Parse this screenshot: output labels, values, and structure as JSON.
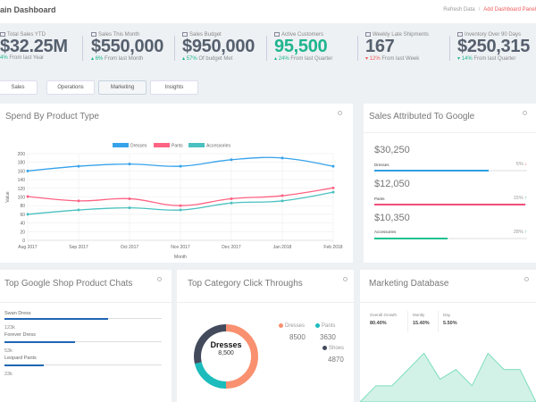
{
  "header": {
    "title": "ain Dashboard",
    "refresh_label": "Refresh Data",
    "separator": "/",
    "add_panel_label": "Add Dashboard Panel"
  },
  "stats": [
    {
      "icon": "money-icon",
      "label": "Total Sales YTD",
      "value": "$32.25M",
      "change": "4%",
      "change_dir": "up",
      "change_text": "From last Year"
    },
    {
      "icon": "money-icon",
      "label": "Sales This Month",
      "value": "$550,000",
      "change": "6%",
      "change_dir": "up",
      "change_text": "From last Month"
    },
    {
      "icon": "money-icon",
      "label": "Sales Budget",
      "value": "$950,000",
      "change": "57%",
      "change_dir": "up",
      "change_text": "Of budget Met"
    },
    {
      "icon": "users-icon",
      "label": "Active Customers",
      "value": "95,500",
      "change": "24%",
      "change_dir": "up",
      "change_text": "From last Quarter"
    },
    {
      "icon": "truck-icon",
      "label": "Weekly Late Shipments",
      "value": "167",
      "change": "12%",
      "change_dir": "down",
      "change_text": "From last Week"
    },
    {
      "icon": "inventory-icon",
      "label": "Inventory Over 90 Days",
      "value": "$250,315",
      "change": "14%",
      "change_dir": "up",
      "change_text": "From last Quarter"
    }
  ],
  "tabs": [
    {
      "label": "Sales",
      "active": false
    },
    {
      "label": "Operations",
      "active": false
    },
    {
      "label": "Marketing",
      "active": true
    },
    {
      "label": "Insights",
      "active": false
    }
  ],
  "spend_card": {
    "title": "Spend By Product Type"
  },
  "chart_data": {
    "type": "line",
    "title": "Spend By Product Type",
    "xlabel": "Month",
    "ylabel": "Value",
    "ylim": [
      0,
      200
    ],
    "yticks": [
      0,
      20,
      40,
      60,
      80,
      100,
      120,
      140,
      160,
      180,
      200
    ],
    "grid": true,
    "legend": "top-center",
    "categories": [
      "Aug 2017",
      "Sep 2017",
      "Oct 2017",
      "Nov 2017",
      "Dec 2017",
      "Jan 2018",
      "Feb 2018"
    ],
    "series": [
      {
        "name": "Dresses",
        "color": "#36a2eb",
        "values": [
          160,
          171,
          176,
          171,
          186,
          190,
          171
        ]
      },
      {
        "name": "Pants",
        "color": "#ff6384",
        "values": [
          101,
          91,
          96,
          80,
          96,
          103,
          121
        ]
      },
      {
        "name": "Accessories",
        "color": "#4bc0c0",
        "values": [
          60,
          70,
          75,
          70,
          86,
          91,
          111
        ]
      }
    ]
  },
  "google_card": {
    "title": "Sales Attributed To Google",
    "items": [
      {
        "amount": "$30,250",
        "name": "Dresses",
        "pct": "5%",
        "dir": "down",
        "fill": 0.75,
        "color": "#2e9fe6"
      },
      {
        "amount": "$12,050",
        "name": "Pants",
        "pct": "15%",
        "dir": "up",
        "fill": 0.99,
        "color": "#f0507a"
      },
      {
        "amount": "$10,350",
        "name": "Accessories",
        "pct": "28%",
        "dir": "up",
        "fill": 0.48,
        "color": "#1fc18f"
      }
    ]
  },
  "chats_card": {
    "title": "Top Google Shop Product Chats",
    "items": [
      {
        "name": "Swan Dress",
        "value": "123k",
        "fill": 0.66
      },
      {
        "name": "Forever Dress",
        "value": "53k",
        "fill": 0.45
      },
      {
        "name": "Leopard Pants",
        "value": "23k",
        "fill": 0.25
      }
    ]
  },
  "clicks_card": {
    "title": "Top Category Click Throughs",
    "center_label": "Dresses",
    "center_value": "8,500",
    "segments": [
      {
        "name": "Dresses",
        "value": 8500,
        "display": "8500",
        "color": "#f9906f"
      },
      {
        "name": "Pants",
        "value": 3630,
        "display": "3630",
        "color": "#1cbcbc"
      },
      {
        "name": "Shoes",
        "value": 4870,
        "display": "4870",
        "color": "#424a5c"
      }
    ]
  },
  "marketing_card": {
    "title": "Marketing Database",
    "stats": [
      {
        "label": "Overall Growth",
        "value": "80.40%"
      },
      {
        "label": "Montly",
        "value": "15.40%"
      },
      {
        "label": "Day",
        "value": "5.50%"
      }
    ],
    "area_values": [
      0,
      5,
      5,
      10,
      15,
      7,
      10,
      5,
      15,
      10,
      10,
      0
    ],
    "area_color": "#7fdcc0"
  }
}
